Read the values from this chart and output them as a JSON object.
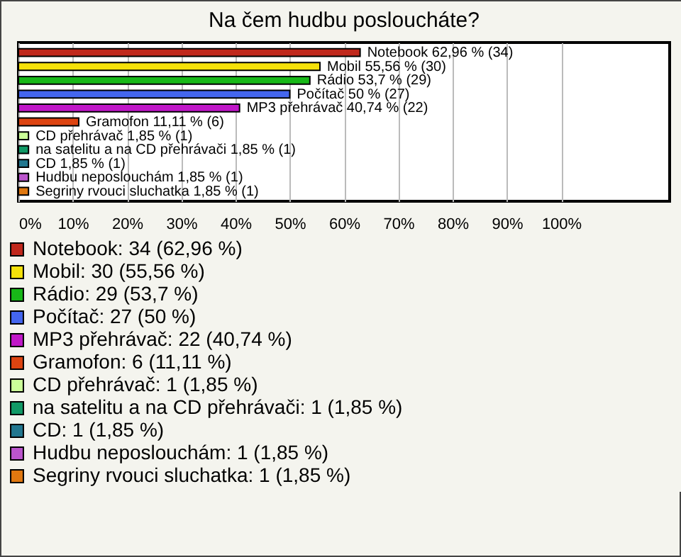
{
  "chart_data": {
    "type": "bar",
    "orientation": "horizontal",
    "title": "Na čem hudbu posloucháte?",
    "categories": [
      null,
      null,
      null,
      null,
      null,
      null,
      null,
      null,
      null,
      null,
      null
    ],
    "series": [
      {
        "name": "Notebook: 34 (62,96 %)",
        "color": "#c0281c",
        "values": [
          62.96,
          null,
          null,
          null,
          null,
          null,
          null,
          null,
          null,
          null,
          null
        ],
        "value_labels": [
          "Notebook 62,96 % (34)",
          null,
          null,
          null,
          null,
          null,
          null,
          null,
          null,
          null,
          null
        ]
      },
      {
        "name": "Mobil: 30 (55,56 %)",
        "color": "#f5e10a",
        "values": [
          null,
          55.56,
          null,
          null,
          null,
          null,
          null,
          null,
          null,
          null,
          null
        ],
        "value_labels": [
          null,
          "Mobil 55,56 % (30)",
          null,
          null,
          null,
          null,
          null,
          null,
          null,
          null,
          null
        ]
      },
      {
        "name": "Rádio: 29 (53,7 %)",
        "color": "#18b818",
        "values": [
          null,
          null,
          53.7,
          null,
          null,
          null,
          null,
          null,
          null,
          null,
          null
        ],
        "value_labels": [
          null,
          null,
          "Rádio 53,7 % (29)",
          null,
          null,
          null,
          null,
          null,
          null,
          null,
          null
        ]
      },
      {
        "name": "Počítač: 27 (50 %)",
        "color": "#4466ee",
        "values": [
          null,
          null,
          null,
          50,
          null,
          null,
          null,
          null,
          null,
          null,
          null
        ],
        "value_labels": [
          null,
          null,
          null,
          "Počítač 50 % (27)",
          null,
          null,
          null,
          null,
          null,
          null,
          null
        ]
      },
      {
        "name": "MP3 přehrávač: 22 (40,74 %)",
        "color": "#c018c8",
        "values": [
          null,
          null,
          null,
          null,
          40.74,
          null,
          null,
          null,
          null,
          null,
          null
        ],
        "value_labels": [
          null,
          null,
          null,
          null,
          "MP3 přehrávač 40,74 % (22)",
          null,
          null,
          null,
          null,
          null,
          null
        ]
      },
      {
        "name": "Gramofon: 6 (11,11 %)",
        "color": "#dd4411",
        "values": [
          null,
          null,
          null,
          null,
          null,
          11.11,
          null,
          null,
          null,
          null,
          null
        ],
        "value_labels": [
          null,
          null,
          null,
          null,
          null,
          "Gramofon 11,11 % (6)",
          null,
          null,
          null,
          null,
          null
        ]
      },
      {
        "name": "CD přehrávač: 1 (1,85 %)",
        "color": "#ccff99",
        "values": [
          null,
          null,
          null,
          null,
          null,
          null,
          1.85,
          null,
          null,
          null,
          null
        ],
        "value_labels": [
          null,
          null,
          null,
          null,
          null,
          null,
          "CD přehrávač 1,85 % (1)",
          null,
          null,
          null,
          null
        ]
      },
      {
        "name": "na satelitu a na CD přehrávači: 1 (1,85 %)",
        "color": "#119966",
        "values": [
          null,
          null,
          null,
          null,
          null,
          null,
          null,
          1.85,
          null,
          null,
          null
        ],
        "value_labels": [
          null,
          null,
          null,
          null,
          null,
          null,
          null,
          "na satelitu a na CD přehrávači 1,85 % (1)",
          null,
          null,
          null
        ]
      },
      {
        "name": "CD: 1 (1,85 %)",
        "color": "#22778f",
        "values": [
          null,
          null,
          null,
          null,
          null,
          null,
          null,
          null,
          1.85,
          null,
          null
        ],
        "value_labels": [
          null,
          null,
          null,
          null,
          null,
          null,
          null,
          null,
          "CD 1,85 % (1)",
          null,
          null
        ]
      },
      {
        "name": "Hudbu neposlouchám: 1 (1,85 %)",
        "color": "#bb55cc",
        "values": [
          null,
          null,
          null,
          null,
          null,
          null,
          null,
          null,
          null,
          1.85,
          null
        ],
        "value_labels": [
          null,
          null,
          null,
          null,
          null,
          null,
          null,
          null,
          null,
          "Hudbu neposlouchám 1,85 % (1)",
          null
        ]
      },
      {
        "name": "Segriny rvouci sluchatka: 1 (1,85 %)",
        "color": "#e07810",
        "values": [
          null,
          null,
          null,
          null,
          null,
          null,
          null,
          null,
          null,
          null,
          1.85
        ],
        "value_labels": [
          null,
          null,
          null,
          null,
          null,
          null,
          null,
          null,
          null,
          null,
          "Segriny rvouci sluchatka 1,85 % (1)"
        ]
      }
    ],
    "xlim": [
      0,
      120
    ],
    "xticks": [
      {
        "value": 0,
        "label": "0%"
      },
      {
        "value": 10,
        "label": "10%"
      },
      {
        "value": 20,
        "label": "20%"
      },
      {
        "value": 30,
        "label": "30%"
      },
      {
        "value": 40,
        "label": "40%"
      },
      {
        "value": 50,
        "label": "50%"
      },
      {
        "value": 60,
        "label": "60%"
      },
      {
        "value": 70,
        "label": "70%"
      },
      {
        "value": 80,
        "label": "80%"
      },
      {
        "value": 90,
        "label": "90%"
      },
      {
        "value": 100,
        "label": "100%"
      }
    ],
    "grid": "x",
    "legend": "bottom"
  }
}
